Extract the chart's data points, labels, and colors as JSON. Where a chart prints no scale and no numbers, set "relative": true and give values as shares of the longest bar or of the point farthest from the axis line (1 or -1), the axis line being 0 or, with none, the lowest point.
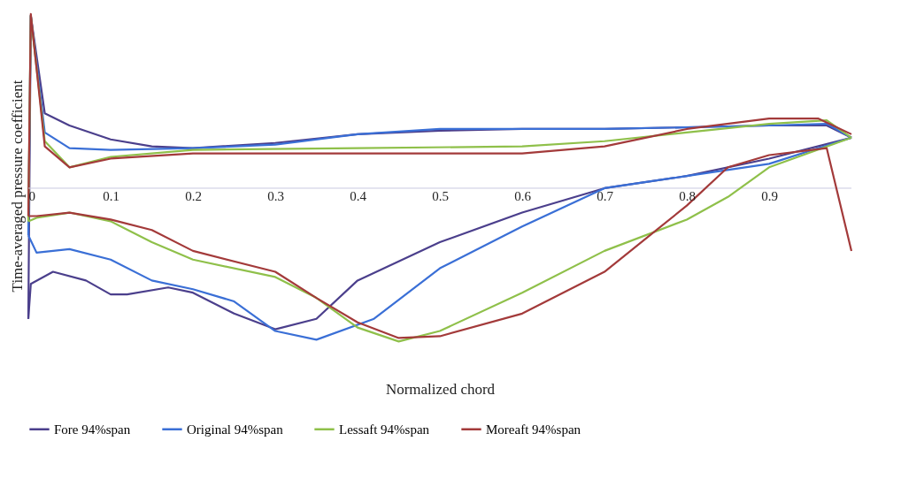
{
  "chart_data": {
    "type": "line",
    "relative": true,
    "xlabel": "Normalized chord",
    "ylabel": "Time-averaged pressure coefficient",
    "xlim": [
      0,
      1
    ],
    "xticks": [
      0,
      0.1,
      0.2,
      0.3,
      0.4,
      0.5,
      0.6,
      0.7,
      0.8,
      0.9
    ],
    "grid": false,
    "legend": "bottom",
    "marker": "none",
    "line_style": "solid",
    "series": [
      {
        "name": "Fore 94%span",
        "color": "#4b3f8c",
        "x": [
          0,
          0.003,
          0.02,
          0.05,
          0.1,
          0.15,
          0.2,
          0.3,
          0.4,
          0.5,
          0.6,
          0.7,
          0.8,
          0.9,
          0.97,
          1
        ],
        "values": [
          -0.75,
          0.99,
          0.43,
          0.36,
          0.28,
          0.24,
          0.23,
          0.26,
          0.31,
          0.33,
          0.34,
          0.34,
          0.35,
          0.36,
          0.36,
          0.29
        ]
      },
      {
        "color": "#4b3f8c",
        "x": [
          0,
          0.003,
          0.03,
          0.07,
          0.1,
          0.12,
          0.17,
          0.2,
          0.25,
          0.3,
          0.35,
          0.4,
          0.5,
          0.6,
          0.7,
          0.8,
          0.9,
          1
        ],
        "values": [
          -0.75,
          -0.55,
          -0.48,
          -0.53,
          -0.61,
          -0.61,
          -0.57,
          -0.6,
          -0.72,
          -0.81,
          -0.75,
          -0.53,
          -0.31,
          -0.14,
          0,
          0.07,
          0.17,
          0.29
        ]
      },
      {
        "name": "Original 94%span",
        "color": "#3a6fd6",
        "x": [
          0,
          0.003,
          0.02,
          0.05,
          0.1,
          0.2,
          0.3,
          0.4,
          0.5,
          0.7,
          0.9,
          0.97,
          1
        ],
        "values": [
          -0.27,
          0.99,
          0.32,
          0.23,
          0.22,
          0.23,
          0.25,
          0.31,
          0.34,
          0.34,
          0.36,
          0.37,
          0.29
        ]
      },
      {
        "color": "#3a6fd6",
        "x": [
          0,
          0.01,
          0.05,
          0.1,
          0.15,
          0.2,
          0.25,
          0.3,
          0.35,
          0.42,
          0.5,
          0.6,
          0.7,
          0.8,
          0.9,
          1
        ],
        "values": [
          -0.27,
          -0.37,
          -0.35,
          -0.41,
          -0.53,
          -0.58,
          -0.65,
          -0.82,
          -0.87,
          -0.75,
          -0.46,
          -0.22,
          0,
          0.07,
          0.14,
          0.29
        ]
      },
      {
        "name": "Lessaft 94%span",
        "color": "#8fc04a",
        "x": [
          0,
          0.003,
          0.02,
          0.05,
          0.1,
          0.2,
          0.4,
          0.6,
          0.7,
          0.8,
          0.9,
          0.97,
          1
        ],
        "values": [
          -0.19,
          0.99,
          0.27,
          0.12,
          0.18,
          0.22,
          0.23,
          0.24,
          0.27,
          0.32,
          0.37,
          0.39,
          0.29
        ]
      },
      {
        "color": "#8fc04a",
        "x": [
          0,
          0.01,
          0.05,
          0.1,
          0.15,
          0.2,
          0.3,
          0.35,
          0.4,
          0.45,
          0.5,
          0.6,
          0.7,
          0.8,
          0.85,
          0.9,
          1
        ],
        "values": [
          -0.19,
          -0.17,
          -0.14,
          -0.19,
          -0.31,
          -0.41,
          -0.51,
          -0.63,
          -0.8,
          -0.88,
          -0.82,
          -0.6,
          -0.36,
          -0.18,
          -0.05,
          0.12,
          0.29
        ]
      },
      {
        "name": "Moreaft 94%span",
        "color": "#a33a3a",
        "x": [
          0,
          0.003,
          0.02,
          0.05,
          0.1,
          0.2,
          0.4,
          0.6,
          0.7,
          0.8,
          0.9,
          0.96,
          1
        ],
        "values": [
          -0.16,
          1.0,
          0.24,
          0.12,
          0.17,
          0.2,
          0.2,
          0.2,
          0.24,
          0.34,
          0.4,
          0.4,
          0.31
        ]
      },
      {
        "color": "#a33a3a",
        "x": [
          0,
          0.01,
          0.05,
          0.1,
          0.15,
          0.2,
          0.3,
          0.35,
          0.4,
          0.45,
          0.5,
          0.6,
          0.7,
          0.8,
          0.85,
          0.9,
          0.97,
          1
        ],
        "values": [
          -0.16,
          -0.16,
          -0.14,
          -0.18,
          -0.24,
          -0.36,
          -0.48,
          -0.63,
          -0.77,
          -0.86,
          -0.85,
          -0.72,
          -0.48,
          -0.1,
          0.12,
          0.19,
          0.23,
          -0.36
        ]
      }
    ]
  }
}
